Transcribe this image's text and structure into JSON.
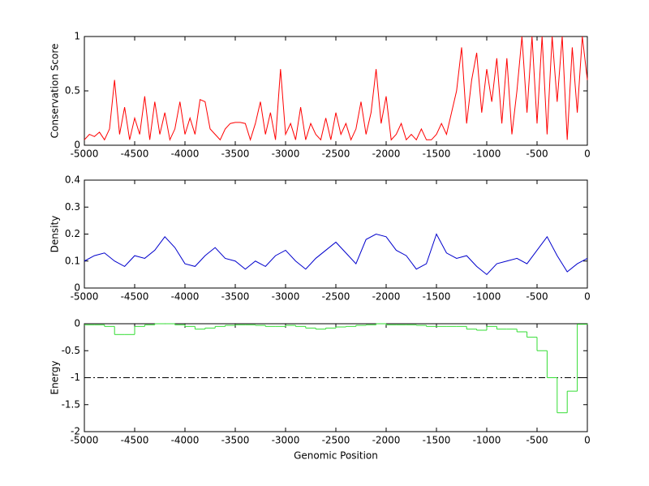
{
  "chart_data": [
    {
      "type": "line",
      "ylabel": "Conservation Score",
      "color": "#ff0000",
      "xlim": [
        -5000,
        0
      ],
      "ylim": [
        0,
        1
      ],
      "xticks": [
        -5000,
        -4500,
        -4000,
        -3500,
        -3000,
        -2500,
        -2000,
        -1500,
        -1000,
        -500,
        0
      ],
      "yticks": [
        0,
        0.5,
        1
      ],
      "x": [
        -5000,
        -4950,
        -4900,
        -4850,
        -4800,
        -4750,
        -4700,
        -4650,
        -4600,
        -4550,
        -4500,
        -4450,
        -4400,
        -4350,
        -4300,
        -4250,
        -4200,
        -4150,
        -4100,
        -4050,
        -4000,
        -3950,
        -3900,
        -3850,
        -3800,
        -3750,
        -3700,
        -3650,
        -3600,
        -3550,
        -3500,
        -3450,
        -3400,
        -3350,
        -3300,
        -3250,
        -3200,
        -3150,
        -3100,
        -3050,
        -3000,
        -2950,
        -2900,
        -2850,
        -2800,
        -2750,
        -2700,
        -2650,
        -2600,
        -2550,
        -2500,
        -2450,
        -2400,
        -2350,
        -2300,
        -2250,
        -2200,
        -2150,
        -2100,
        -2050,
        -2000,
        -1950,
        -1900,
        -1850,
        -1800,
        -1750,
        -1700,
        -1650,
        -1600,
        -1550,
        -1500,
        -1450,
        -1400,
        -1350,
        -1300,
        -1250,
        -1200,
        -1150,
        -1100,
        -1050,
        -1000,
        -950,
        -900,
        -850,
        -800,
        -750,
        -700,
        -650,
        -600,
        -550,
        -500,
        -450,
        -400,
        -350,
        -300,
        -250,
        -200,
        -150,
        -100,
        -50,
        0
      ],
      "values": [
        0.05,
        0.1,
        0.08,
        0.12,
        0.05,
        0.15,
        0.6,
        0.1,
        0.35,
        0.05,
        0.25,
        0.1,
        0.45,
        0.05,
        0.4,
        0.1,
        0.3,
        0.05,
        0.15,
        0.4,
        0.1,
        0.25,
        0.1,
        0.42,
        0.4,
        0.15,
        0.1,
        0.05,
        0.15,
        0.2,
        0.21,
        0.21,
        0.2,
        0.05,
        0.2,
        0.4,
        0.1,
        0.3,
        0.05,
        0.7,
        0.1,
        0.2,
        0.05,
        0.35,
        0.05,
        0.2,
        0.1,
        0.05,
        0.25,
        0.05,
        0.3,
        0.1,
        0.2,
        0.05,
        0.15,
        0.4,
        0.1,
        0.3,
        0.7,
        0.2,
        0.45,
        0.05,
        0.1,
        0.2,
        0.05,
        0.1,
        0.05,
        0.15,
        0.05,
        0.05,
        0.1,
        0.2,
        0.1,
        0.3,
        0.5,
        0.9,
        0.2,
        0.6,
        0.85,
        0.3,
        0.7,
        0.4,
        0.8,
        0.2,
        0.8,
        0.1,
        0.5,
        1,
        0.3,
        1,
        0.2,
        1,
        0.1,
        1,
        0.4,
        1,
        0.05,
        0.9,
        0.3,
        1,
        0.6
      ]
    },
    {
      "type": "line",
      "ylabel": "Density",
      "color": "#0000cc",
      "xlim": [
        -5000,
        0
      ],
      "ylim": [
        0,
        0.4
      ],
      "xticks": [
        -5000,
        -4500,
        -4000,
        -3500,
        -3000,
        -2500,
        -2000,
        -1500,
        -1000,
        -500,
        0
      ],
      "yticks": [
        0,
        0.1,
        0.2,
        0.3,
        0.4
      ],
      "x": [
        -5000,
        -4900,
        -4800,
        -4700,
        -4600,
        -4500,
        -4400,
        -4300,
        -4200,
        -4100,
        -4000,
        -3900,
        -3800,
        -3700,
        -3600,
        -3500,
        -3400,
        -3300,
        -3200,
        -3100,
        -3000,
        -2900,
        -2800,
        -2700,
        -2600,
        -2500,
        -2400,
        -2300,
        -2200,
        -2100,
        -2000,
        -1900,
        -1800,
        -1700,
        -1600,
        -1500,
        -1400,
        -1300,
        -1200,
        -1100,
        -1000,
        -900,
        -800,
        -700,
        -600,
        -500,
        -400,
        -300,
        -200,
        -100,
        0
      ],
      "values": [
        0.1,
        0.12,
        0.13,
        0.1,
        0.08,
        0.12,
        0.11,
        0.14,
        0.19,
        0.15,
        0.09,
        0.08,
        0.12,
        0.15,
        0.11,
        0.1,
        0.07,
        0.1,
        0.08,
        0.12,
        0.14,
        0.1,
        0.07,
        0.11,
        0.14,
        0.17,
        0.13,
        0.09,
        0.18,
        0.2,
        0.19,
        0.14,
        0.12,
        0.07,
        0.09,
        0.2,
        0.13,
        0.11,
        0.12,
        0.08,
        0.05,
        0.09,
        0.1,
        0.11,
        0.09,
        0.14,
        0.19,
        0.12,
        0.06,
        0.09,
        0.11
      ]
    },
    {
      "type": "step",
      "ylabel": "Energy",
      "xlabel": "Genomic Position",
      "color": "#33dd33",
      "xlim": [
        -5000,
        0
      ],
      "ylim": [
        -2,
        0
      ],
      "xticks": [
        -5000,
        -4500,
        -4000,
        -3500,
        -3000,
        -2500,
        -2000,
        -1500,
        -1000,
        -500,
        0
      ],
      "yticks": [
        -2,
        -1.5,
        -1,
        -0.5,
        0
      ],
      "hline": -1,
      "x": [
        -5000,
        -4900,
        -4800,
        -4700,
        -4600,
        -4500,
        -4400,
        -4300,
        -4200,
        -4100,
        -4000,
        -3900,
        -3800,
        -3700,
        -3600,
        -3500,
        -3400,
        -3300,
        -3200,
        -3100,
        -3000,
        -2900,
        -2800,
        -2700,
        -2600,
        -2500,
        -2400,
        -2300,
        -2200,
        -2100,
        -2000,
        -1900,
        -1800,
        -1700,
        -1600,
        -1500,
        -1400,
        -1300,
        -1200,
        -1100,
        -1000,
        -900,
        -800,
        -700,
        -600,
        -500,
        -400,
        -300,
        -200,
        -100,
        0
      ],
      "values": [
        -0.02,
        -0.02,
        -0.05,
        -0.2,
        -0.2,
        -0.05,
        -0.02,
        0,
        0,
        -0.02,
        -0.05,
        -0.1,
        -0.08,
        -0.05,
        -0.03,
        -0.02,
        -0.02,
        -0.03,
        -0.05,
        -0.05,
        -0.03,
        -0.05,
        -0.08,
        -0.1,
        -0.08,
        -0.06,
        -0.05,
        -0.03,
        -0.02,
        0,
        -0.02,
        -0.02,
        -0.02,
        -0.03,
        -0.05,
        -0.05,
        -0.05,
        -0.05,
        -0.1,
        -0.12,
        -0.05,
        -0.1,
        -0.1,
        -0.15,
        -0.25,
        -0.5,
        -1,
        -1.65,
        -1.25,
        -0.01,
        0
      ]
    }
  ]
}
